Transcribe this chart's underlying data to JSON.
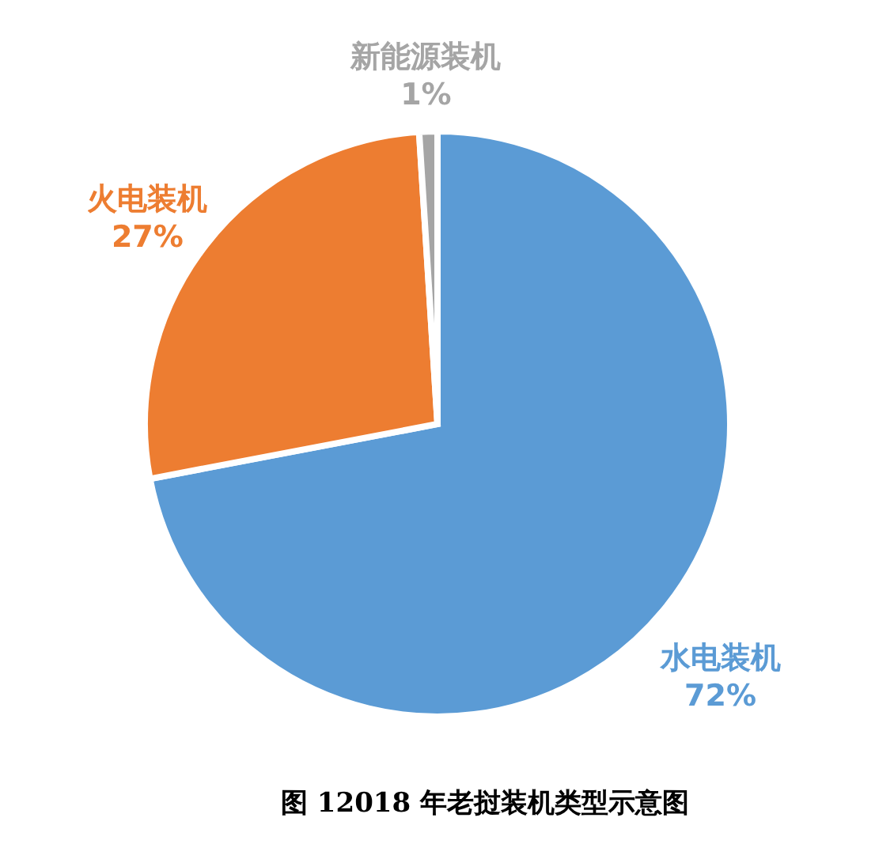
{
  "chart_data": {
    "type": "pie",
    "categories": [
      "水电装机",
      "火电装机",
      "新能源装机"
    ],
    "values": [
      72,
      27,
      1
    ],
    "value_labels": [
      "72%",
      "27%",
      "1%"
    ],
    "colors": [
      "#5b9bd5",
      "#ed7d31",
      "#a5a5a5"
    ],
    "annotations": [
      "图 12018 年老挝装机类型示意图"
    ]
  }
}
